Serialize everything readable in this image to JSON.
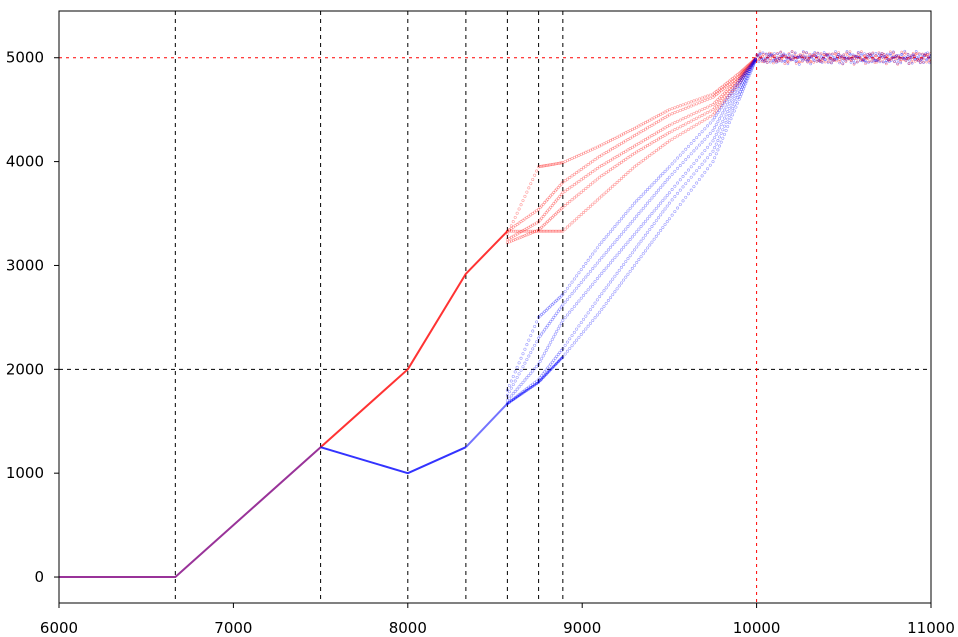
{
  "chart_data": {
    "type": "line",
    "title": "",
    "xlabel": "",
    "ylabel": "",
    "xlim": [
      6000,
      11000
    ],
    "ylim": [
      -250,
      5450
    ],
    "x_ticks": [
      6000,
      7000,
      8000,
      9000,
      10000,
      11000
    ],
    "y_ticks": [
      0,
      1000,
      2000,
      3000,
      4000,
      5000
    ],
    "x_tick_labels": [
      "6000",
      "7000",
      "8000",
      "9000",
      "10000",
      "11000"
    ],
    "y_tick_labels": [
      "0",
      "1000",
      "2000",
      "3000",
      "4000",
      "5000"
    ],
    "grid": false,
    "legend": "none",
    "reference_lines": {
      "black_vertical_x": [
        6667,
        7500,
        8000,
        8333,
        8571,
        8750,
        8889
      ],
      "black_horizontal_y": [
        2000
      ],
      "red_vertical_x": [
        10000
      ],
      "red_horizontal_y": [
        5000
      ]
    },
    "colors": {
      "red": "#ff0000",
      "blue": "#0000ff",
      "purple": "#800080",
      "black": "#000000"
    },
    "series": [
      {
        "color": "#800080",
        "x": [
          6000,
          6667,
          7500
        ],
        "y": [
          0,
          0,
          1250
        ]
      },
      {
        "color": "#ff0000",
        "x": [
          7500,
          8000,
          8333,
          8571
        ],
        "y": [
          1250,
          2000,
          2920,
          3330
        ]
      },
      {
        "color": "#0000ff",
        "x": [
          7500,
          8000,
          8333
        ],
        "y": [
          1250,
          1000,
          1250
        ]
      },
      {
        "color": "#0000ff",
        "x": [
          8333,
          8571,
          8750,
          8889
        ],
        "y": [
          1250,
          1670,
          1875,
          2120
        ]
      }
    ],
    "scatter_series": [
      {
        "color": "#ff0000",
        "x": [
          8571,
          8750,
          8889,
          9100,
          9300,
          9500,
          9750,
          9900,
          10000
        ],
        "y": [
          3300,
          3950,
          3990,
          4150,
          4320,
          4500,
          4650,
          4850,
          5000
        ]
      },
      {
        "color": "#ff0000",
        "x": [
          8571,
          8750,
          8889,
          9100,
          9300,
          9500,
          9750,
          9900,
          10000
        ],
        "y": [
          3330,
          3540,
          3800,
          4050,
          4250,
          4450,
          4620,
          4820,
          5000
        ]
      },
      {
        "color": "#ff0000",
        "x": [
          8571,
          8750,
          8889,
          9100,
          9300,
          9500,
          9750,
          9900,
          10000
        ],
        "y": [
          3250,
          3420,
          3700,
          3950,
          4150,
          4350,
          4550,
          4800,
          5000
        ]
      },
      {
        "color": "#ff0000",
        "x": [
          8571,
          8750,
          8889,
          9100,
          9300,
          9500,
          9750,
          9900,
          10000
        ],
        "y": [
          3220,
          3340,
          3560,
          3850,
          4080,
          4280,
          4500,
          4780,
          5000
        ]
      },
      {
        "color": "#ff0000",
        "x": [
          8571,
          8750,
          8889,
          9100,
          9300,
          9500,
          9750,
          9900,
          10000
        ],
        "y": [
          3330,
          3330,
          3330,
          3650,
          3950,
          4200,
          4450,
          4750,
          5000
        ]
      },
      {
        "color": "#0000ff",
        "x": [
          8571,
          8750,
          8889,
          9100,
          9300,
          9500,
          9750,
          9900,
          10000
        ],
        "y": [
          1800,
          2500,
          2720,
          3200,
          3600,
          3950,
          4400,
          4780,
          5000
        ]
      },
      {
        "color": "#0000ff",
        "x": [
          8571,
          8750,
          8889,
          9100,
          9300,
          9500,
          9750,
          9900,
          10000
        ],
        "y": [
          1750,
          2300,
          2620,
          3050,
          3450,
          3850,
          4300,
          4750,
          5000
        ]
      },
      {
        "color": "#0000ff",
        "x": [
          8571,
          8750,
          8889,
          9100,
          9300,
          9500,
          9750,
          9900,
          10000
        ],
        "y": [
          1700,
          2050,
          2470,
          2900,
          3300,
          3700,
          4200,
          4700,
          5000
        ]
      },
      {
        "color": "#0000ff",
        "x": [
          8571,
          8750,
          8889,
          9100,
          9300,
          9500,
          9750,
          9900,
          10000
        ],
        "y": [
          1670,
          1900,
          2200,
          2700,
          3150,
          3600,
          4100,
          4650,
          5000
        ]
      },
      {
        "color": "#0000ff",
        "x": [
          8571,
          8750,
          8889,
          9100,
          9300,
          9500,
          9750,
          9900,
          10000
        ],
        "y": [
          1670,
          1875,
          2120,
          2550,
          3000,
          3450,
          4000,
          4600,
          5000
        ]
      }
    ],
    "plateau": {
      "x_start": 10000,
      "x_end": 11000,
      "y_center": 5000,
      "spread": 60
    }
  }
}
